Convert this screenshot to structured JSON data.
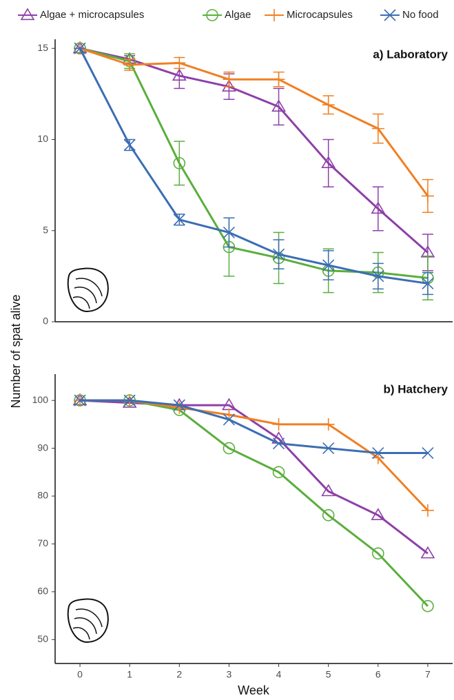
{
  "chart_data": [
    {
      "type": "line",
      "title": "a) Laboratory",
      "ylabel": "Number of spat alive",
      "x": [
        0,
        1,
        2,
        3,
        4,
        5,
        6,
        7
      ],
      "xlim": [
        -0.5,
        7.5
      ],
      "ylim": [
        0,
        15.5
      ],
      "yticks": [
        0,
        5,
        10,
        15
      ],
      "series": [
        {
          "name": "Algae + microcapsules",
          "color": "#8e3fa8",
          "marker": "triangle",
          "values": [
            15,
            14.4,
            13.5,
            12.9,
            11.8,
            8.7,
            6.2,
            3.8
          ],
          "errors": [
            0,
            0.2,
            0.7,
            0.7,
            1.0,
            1.3,
            1.2,
            1.0
          ]
        },
        {
          "name": "Algae",
          "color": "#5aae3c",
          "marker": "circle",
          "values": [
            15,
            14.3,
            8.7,
            4.1,
            3.5,
            2.8,
            2.7,
            2.4
          ],
          "errors": [
            0,
            0.4,
            1.2,
            1.6,
            1.4,
            1.2,
            1.1,
            1.2
          ]
        },
        {
          "name": "Microcapsules",
          "color": "#f07f22",
          "marker": "plus",
          "values": [
            15,
            14.1,
            14.2,
            13.3,
            13.3,
            11.9,
            10.6,
            6.9
          ],
          "errors": [
            0,
            0.3,
            0.3,
            0.4,
            0.4,
            0.5,
            0.8,
            0.9
          ]
        },
        {
          "name": "No food",
          "color": "#3b6db3",
          "marker": "x",
          "values": [
            15,
            9.7,
            5.6,
            4.9,
            3.7,
            3.1,
            2.5,
            2.1
          ],
          "errors": [
            0,
            0.3,
            0.3,
            0.8,
            0.8,
            0.8,
            0.7,
            0.6
          ]
        }
      ]
    },
    {
      "type": "line",
      "title": "b) Hatchery",
      "xlabel": "Week",
      "x": [
        0,
        1,
        2,
        3,
        4,
        5,
        6,
        7
      ],
      "xlim": [
        -0.5,
        7.5
      ],
      "xticks": [
        0,
        1,
        2,
        3,
        4,
        5,
        6,
        7
      ],
      "ylim": [
        45,
        105.5
      ],
      "yticks": [
        50,
        60,
        70,
        80,
        90,
        100
      ],
      "series": [
        {
          "color": "#8e3fa8",
          "marker": "triangle",
          "values": [
            100,
            99.5,
            99,
            99,
            92,
            81,
            76,
            68
          ]
        },
        {
          "color": "#5aae3c",
          "marker": "circle",
          "values": [
            100,
            100,
            98,
            90,
            85,
            76,
            68,
            57
          ]
        },
        {
          "color": "#f07f22",
          "marker": "plus",
          "values": [
            100,
            100,
            98.5,
            97,
            95,
            95,
            88,
            77
          ]
        },
        {
          "color": "#3b6db3",
          "marker": "x",
          "values": [
            100,
            100,
            99,
            96,
            91,
            90,
            89,
            89
          ]
        }
      ]
    }
  ]
}
